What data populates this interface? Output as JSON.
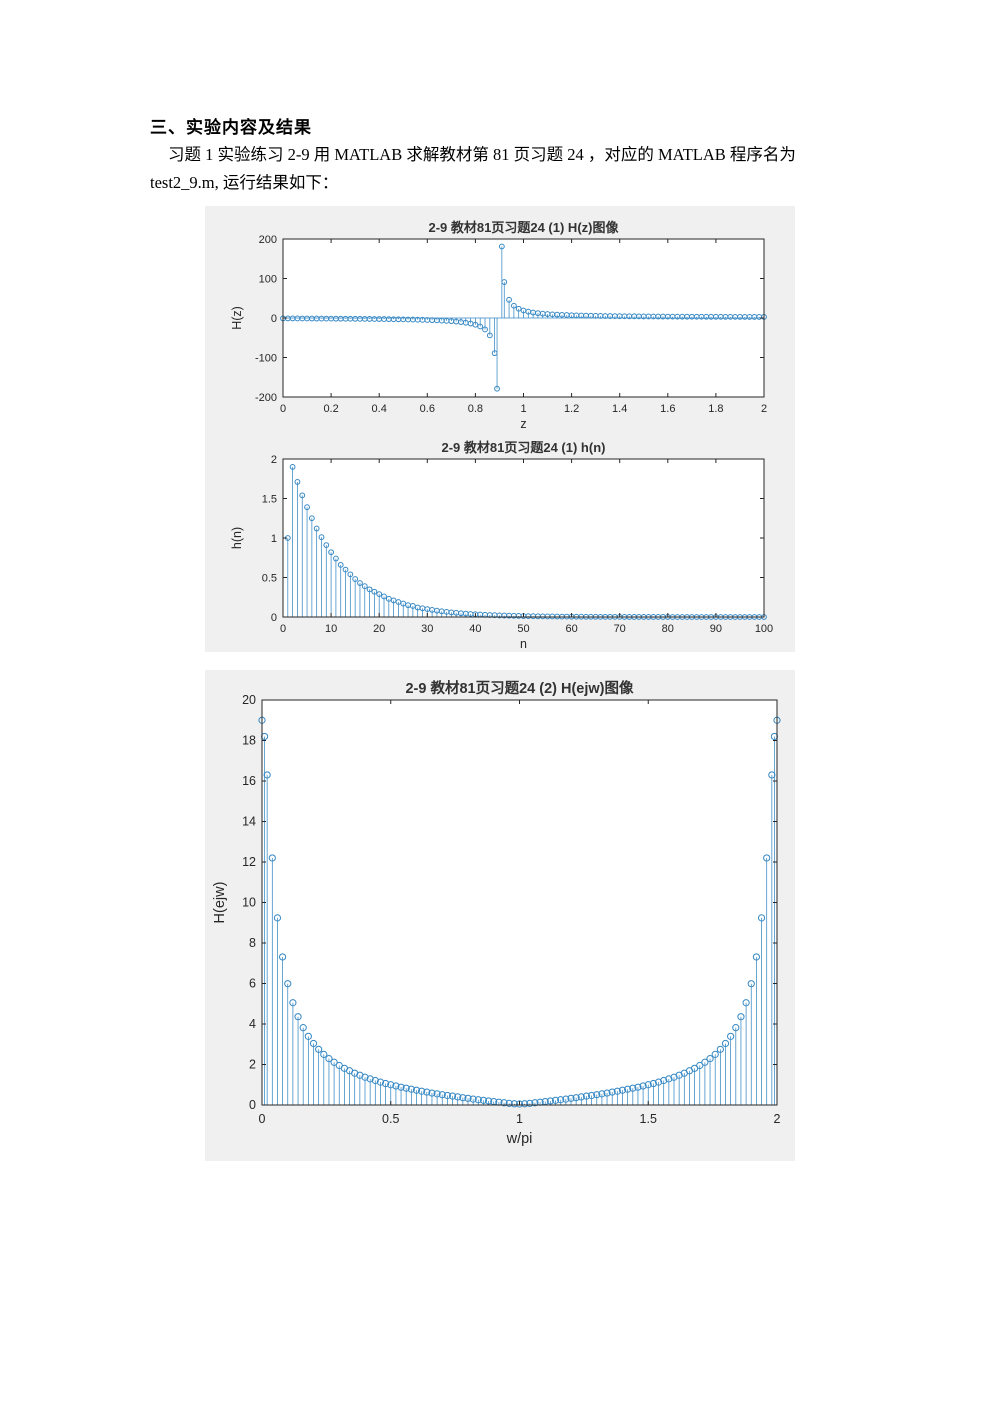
{
  "page": {
    "heading": "三、实验内容及结果",
    "para_line1": "习题 1 实验练习 2-9 用 MATLAB 求解教材第 81 页习题 24 ，对应的 MATLAB 程序名为",
    "para_line2": "test2_9.m, 运行结果如下："
  },
  "colors": {
    "stem": "#3688C4",
    "axis": "#262626",
    "title": "#333333",
    "figure_bg": "#F0F0F0",
    "plot_bg": "#FFFFFF"
  },
  "chart_data": [
    {
      "id": "Hz",
      "type": "stem",
      "title": "2-9 教材81页习题24 (1) H(z)图像",
      "xlabel": "z",
      "ylabel": "H(z)",
      "xlim": [
        0,
        2
      ],
      "ylim": [
        -200,
        200
      ],
      "xticks": [
        0,
        0.2,
        0.4,
        0.6,
        0.8,
        1,
        1.2,
        1.4,
        1.6,
        1.8,
        2
      ],
      "yticks": [
        -200,
        -100,
        0,
        100,
        200
      ],
      "baseline": 0,
      "x": [
        0,
        0.02,
        0.04,
        0.06,
        0.08,
        0.1,
        0.12,
        0.14,
        0.16,
        0.18,
        0.2,
        0.22,
        0.24,
        0.26,
        0.28,
        0.3,
        0.32,
        0.34,
        0.36,
        0.38,
        0.4,
        0.42,
        0.44,
        0.46,
        0.48,
        0.5,
        0.52,
        0.54,
        0.56,
        0.58,
        0.6,
        0.62,
        0.64,
        0.66,
        0.68,
        0.7,
        0.72,
        0.74,
        0.76,
        0.78,
        0.8,
        0.82,
        0.84,
        0.86,
        0.88,
        0.89,
        0.91,
        0.92,
        0.94,
        0.96,
        0.98,
        1,
        1.02,
        1.04,
        1.06,
        1.08,
        1.1,
        1.12,
        1.14,
        1.16,
        1.18,
        1.2,
        1.22,
        1.24,
        1.26,
        1.28,
        1.3,
        1.32,
        1.34,
        1.36,
        1.38,
        1.4,
        1.42,
        1.44,
        1.46,
        1.48,
        1.5,
        1.52,
        1.54,
        1.56,
        1.58,
        1.6,
        1.62,
        1.64,
        1.66,
        1.68,
        1.7,
        1.72,
        1.74,
        1.76,
        1.78,
        1.8,
        1.82,
        1.84,
        1.86,
        1.88,
        1.9,
        1.92,
        1.94,
        1.96,
        1.98,
        2
      ],
      "y": [
        -1,
        -1.05,
        -1.09,
        -1.14,
        -1.2,
        -1.25,
        -1.31,
        -1.37,
        -1.43,
        -1.5,
        -1.57,
        -1.65,
        -1.73,
        -1.81,
        -1.9,
        -2,
        -2.1,
        -2.21,
        -2.33,
        -2.46,
        -2.6,
        -2.75,
        -2.91,
        -3.09,
        -3.29,
        -3.5,
        -3.74,
        -4,
        -4.29,
        -4.63,
        -5,
        -5.43,
        -5.92,
        -6.5,
        -7.18,
        -8,
        -9,
        -10.25,
        -11.86,
        -14,
        -17,
        -21.5,
        -29,
        -44,
        -89,
        -179,
        181,
        91,
        46,
        31,
        23.5,
        19,
        16,
        13.86,
        12.25,
        11,
        10,
        9.18,
        8.5,
        7.92,
        7.43,
        7,
        6.63,
        6.29,
        6,
        5.74,
        5.5,
        5.29,
        5.09,
        4.91,
        4.75,
        4.6,
        4.46,
        4.33,
        4.21,
        4.1,
        4,
        3.9,
        3.81,
        3.73,
        3.65,
        3.57,
        3.5,
        3.43,
        3.37,
        3.31,
        3.25,
        3.2,
        3.14,
        3.09,
        3.05,
        3,
        2.96,
        2.91,
        2.87,
        2.84,
        2.8,
        2.76,
        2.73,
        2.7,
        2.67,
        2.64
      ]
    },
    {
      "id": "hn",
      "type": "stem",
      "title": "2-9 教材81页习题24 (1) h(n)",
      "xlabel": "n",
      "ylabel": "h(n)",
      "xlim": [
        0,
        100
      ],
      "ylim": [
        0,
        2
      ],
      "xticks": [
        0,
        10,
        20,
        30,
        40,
        50,
        60,
        70,
        80,
        90,
        100
      ],
      "yticks": [
        0,
        0.5,
        1,
        1.5,
        2
      ],
      "baseline": 0,
      "x_start": 1,
      "x_step": 1,
      "y": [
        1,
        1.9,
        1.71,
        1.54,
        1.39,
        1.25,
        1.12,
        1.01,
        0.91,
        0.82,
        0.74,
        0.66,
        0.6,
        0.54,
        0.48,
        0.43,
        0.39,
        0.35,
        0.32,
        0.29,
        0.26,
        0.23,
        0.21,
        0.19,
        0.17,
        0.15,
        0.14,
        0.12,
        0.11,
        0.1,
        0.09,
        0.08,
        0.072,
        0.065,
        0.058,
        0.053,
        0.047,
        0.043,
        0.038,
        0.035,
        0.031,
        0.028,
        0.025,
        0.023,
        0.02,
        0.018,
        0.017,
        0.015,
        0.014,
        0.012,
        0.011,
        0.01,
        0.009,
        0.008,
        0.007,
        0.007,
        0.006,
        0.005,
        0.005,
        0.004,
        0.004,
        0.004,
        0.003,
        0.003,
        0.003,
        0.002,
        0.002,
        0.002,
        0.002,
        0.002,
        0.001,
        0.001,
        0.001,
        0.001,
        0.001,
        0.001,
        0.001,
        0.001,
        0.001,
        0.001,
        0,
        0,
        0,
        0,
        0,
        0,
        0,
        0,
        0,
        0,
        0,
        0,
        0,
        0,
        0,
        0,
        0,
        0,
        0,
        0
      ]
    },
    {
      "id": "Hejw",
      "type": "stem",
      "title": "2-9 教材81页习题24 (2) H(ejw)图像",
      "xlabel": "w/pi",
      "ylabel": "H(ejw)",
      "xlim": [
        0,
        2
      ],
      "ylim": [
        0,
        20
      ],
      "xticks": [
        0,
        0.5,
        1,
        1.5,
        2
      ],
      "yticks": [
        0,
        2,
        4,
        6,
        8,
        10,
        12,
        14,
        16,
        18,
        20
      ],
      "baseline": 0,
      "x": [
        0,
        0.01,
        0.02,
        0.04,
        0.06,
        0.08,
        0.1,
        0.12,
        0.14,
        0.16,
        0.18,
        0.2,
        0.22,
        0.24,
        0.26,
        0.28,
        0.3,
        0.32,
        0.34,
        0.36,
        0.38,
        0.4,
        0.42,
        0.44,
        0.46,
        0.48,
        0.5,
        0.52,
        0.54,
        0.56,
        0.58,
        0.6,
        0.62,
        0.64,
        0.66,
        0.68,
        0.7,
        0.72,
        0.74,
        0.76,
        0.78,
        0.8,
        0.82,
        0.84,
        0.86,
        0.88,
        0.9,
        0.92,
        0.94,
        0.96,
        0.98,
        1,
        1.02,
        1.04,
        1.06,
        1.08,
        1.1,
        1.12,
        1.14,
        1.16,
        1.18,
        1.2,
        1.22,
        1.24,
        1.26,
        1.28,
        1.3,
        1.32,
        1.34,
        1.36,
        1.38,
        1.4,
        1.42,
        1.44,
        1.46,
        1.48,
        1.5,
        1.52,
        1.54,
        1.56,
        1.58,
        1.6,
        1.62,
        1.64,
        1.66,
        1.68,
        1.7,
        1.72,
        1.74,
        1.76,
        1.78,
        1.8,
        1.82,
        1.84,
        1.86,
        1.88,
        1.9,
        1.92,
        1.94,
        1.96,
        1.98,
        1.99,
        2
      ],
      "y": [
        19,
        18.2,
        16.3,
        12.2,
        9.24,
        7.31,
        5.99,
        5.05,
        4.36,
        3.82,
        3.39,
        3.04,
        2.75,
        2.5,
        2.29,
        2.11,
        1.95,
        1.81,
        1.69,
        1.57,
        1.47,
        1.37,
        1.29,
        1.21,
        1.13,
        1.06,
        1,
        0.94,
        0.88,
        0.83,
        0.78,
        0.73,
        0.68,
        0.64,
        0.59,
        0.55,
        0.51,
        0.47,
        0.44,
        0.4,
        0.36,
        0.33,
        0.29,
        0.26,
        0.23,
        0.2,
        0.17,
        0.14,
        0.11,
        0.08,
        0.06,
        0.05,
        0.06,
        0.08,
        0.11,
        0.14,
        0.17,
        0.2,
        0.23,
        0.26,
        0.29,
        0.33,
        0.36,
        0.4,
        0.44,
        0.47,
        0.51,
        0.55,
        0.59,
        0.64,
        0.68,
        0.73,
        0.78,
        0.83,
        0.88,
        0.94,
        1,
        1.06,
        1.13,
        1.21,
        1.29,
        1.37,
        1.47,
        1.57,
        1.69,
        1.81,
        1.95,
        2.11,
        2.29,
        2.5,
        2.75,
        3.04,
        3.39,
        3.82,
        4.36,
        5.05,
        5.99,
        7.31,
        9.24,
        12.2,
        16.3,
        18.2,
        19
      ]
    }
  ]
}
